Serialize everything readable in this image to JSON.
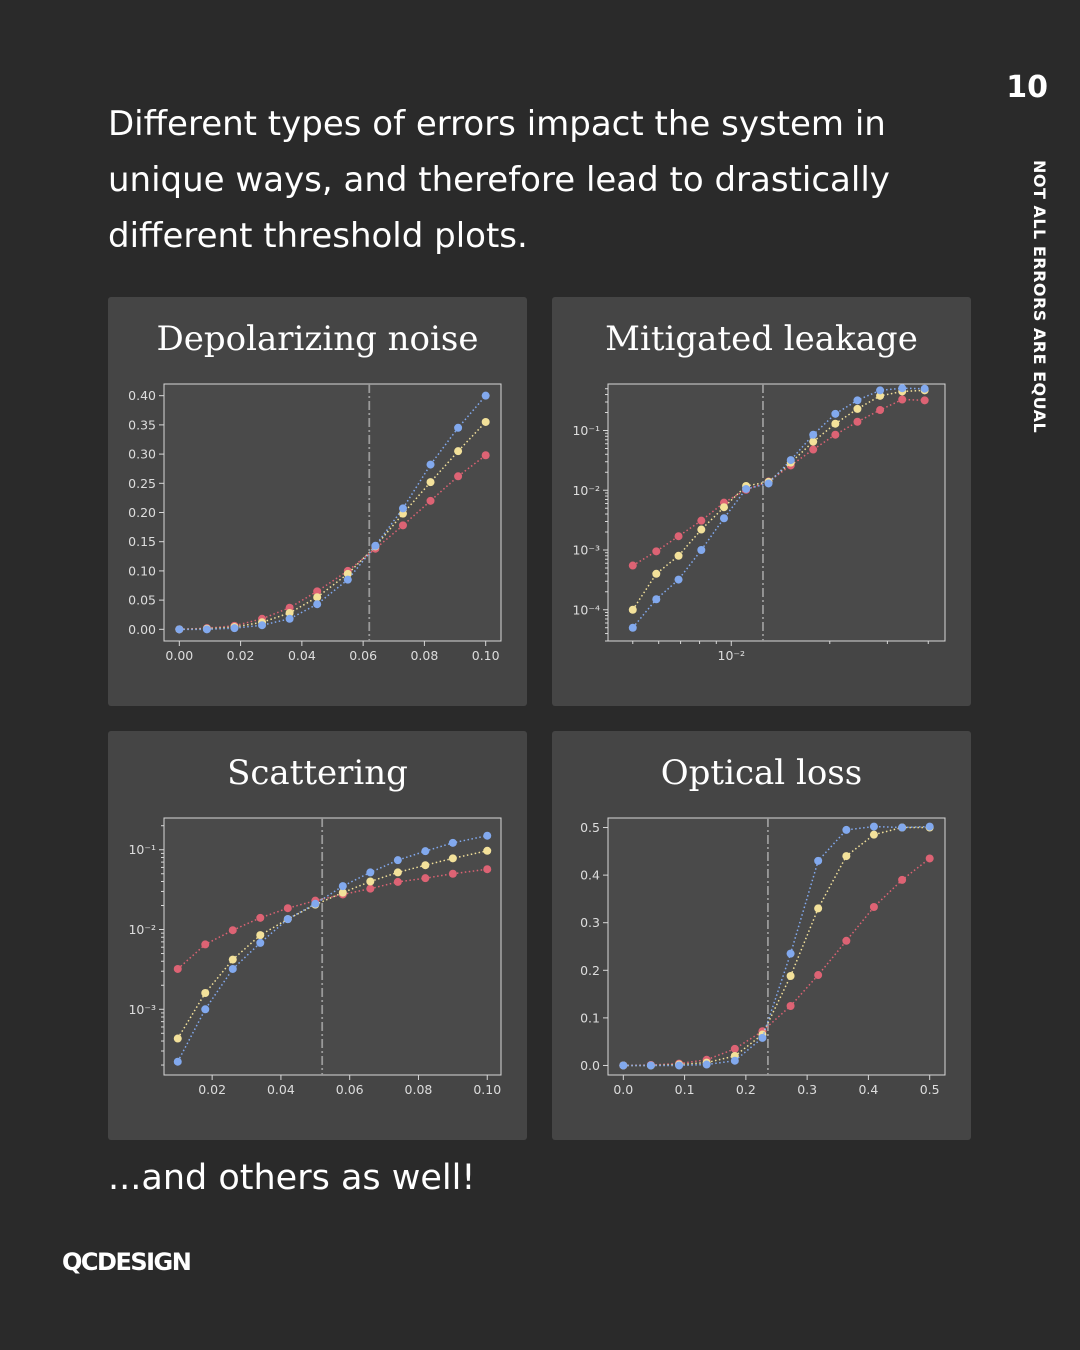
{
  "page_number": "10",
  "side_title": "NOT ALL ERRORS ARE EQUAL",
  "intro_text": "Different types of errors impact the system in unique ways, and therefore lead to drastically different threshold plots.",
  "outro_text": "...and others as well!",
  "brand": "QCDESIGN",
  "colors": {
    "background": "#2a2a2a",
    "panel": "#454545",
    "plot_bg": "#4a4a4a",
    "blue": "#82a9ee",
    "yellow": "#f3e19a",
    "red": "#dd6374",
    "threshold_line": "#9a9a9a"
  },
  "chart_data": [
    {
      "type": "line",
      "title": "Depolarizing noise",
      "xscale": "linear",
      "yscale": "linear",
      "xlim": [
        -0.005,
        0.105
      ],
      "ylim": [
        -0.02,
        0.42
      ],
      "xticks": [
        0.0,
        0.02,
        0.04,
        0.06,
        0.08,
        0.1
      ],
      "xtick_labels": [
        "0.00",
        "0.02",
        "0.04",
        "0.06",
        "0.08",
        "0.10"
      ],
      "yticks": [
        0.0,
        0.05,
        0.1,
        0.15,
        0.2,
        0.25,
        0.3,
        0.35,
        0.4
      ],
      "ytick_labels": [
        "0.00",
        "0.05",
        "0.10",
        "0.15",
        "0.20",
        "0.25",
        "0.30",
        "0.35",
        "0.40"
      ],
      "threshold": 0.062,
      "x": [
        0.0,
        0.009,
        0.018,
        0.027,
        0.036,
        0.045,
        0.055,
        0.064,
        0.073,
        0.082,
        0.091,
        0.1
      ],
      "series": [
        {
          "color": "#dd6374",
          "values": [
            0.0,
            0.002,
            0.006,
            0.018,
            0.037,
            0.065,
            0.1,
            0.138,
            0.178,
            0.22,
            0.262,
            0.298
          ]
        },
        {
          "color": "#f3e19a",
          "values": [
            0.0,
            0.001,
            0.004,
            0.012,
            0.028,
            0.055,
            0.095,
            0.142,
            0.198,
            0.252,
            0.305,
            0.355
          ]
        },
        {
          "color": "#82a9ee",
          "values": [
            0.0,
            0.0,
            0.002,
            0.007,
            0.018,
            0.043,
            0.085,
            0.143,
            0.207,
            0.282,
            0.345,
            0.4
          ]
        }
      ]
    },
    {
      "type": "line",
      "title": "Mitigated leakage",
      "xscale": "log",
      "yscale": "log",
      "xlim": [
        0.0042,
        0.045
      ],
      "ylim": [
        3e-05,
        0.6
      ],
      "xticks": [
        0.01
      ],
      "xtick_labels": [
        "10⁻²"
      ],
      "yticks": [
        0.0001,
        0.001,
        0.01,
        0.1
      ],
      "ytick_labels": [
        "10⁻⁴",
        "10⁻³",
        "10⁻²",
        "10⁻¹"
      ],
      "threshold": 0.0125,
      "x": [
        0.005,
        0.0059,
        0.0069,
        0.0081,
        0.0095,
        0.0111,
        0.013,
        0.0152,
        0.0178,
        0.0208,
        0.0243,
        0.0285,
        0.0333,
        0.039
      ],
      "series": [
        {
          "color": "#dd6374",
          "values": [
            0.00055,
            0.00095,
            0.0017,
            0.0031,
            0.0062,
            0.0102,
            0.014,
            0.026,
            0.048,
            0.085,
            0.14,
            0.22,
            0.33,
            0.32
          ]
        },
        {
          "color": "#f3e19a",
          "values": [
            0.0001,
            0.0004,
            0.0008,
            0.0022,
            0.0052,
            0.0118,
            0.0138,
            0.029,
            0.065,
            0.13,
            0.23,
            0.38,
            0.45,
            0.47
          ]
        },
        {
          "color": "#82a9ee",
          "values": [
            5e-05,
            0.00015,
            0.00032,
            0.001,
            0.0034,
            0.0105,
            0.013,
            0.032,
            0.085,
            0.19,
            0.32,
            0.47,
            0.51,
            0.5
          ]
        }
      ]
    },
    {
      "type": "line",
      "title": "Scattering",
      "xscale": "linear",
      "yscale": "log",
      "xlim": [
        0.006,
        0.104
      ],
      "ylim": [
        0.00015,
        0.25
      ],
      "xticks": [
        0.02,
        0.04,
        0.06,
        0.08,
        0.1
      ],
      "xtick_labels": [
        "0.02",
        "0.04",
        "0.06",
        "0.08",
        "0.10"
      ],
      "yticks": [
        0.001,
        0.01,
        0.1
      ],
      "ytick_labels": [
        "10⁻³",
        "10⁻²",
        "10⁻¹"
      ],
      "threshold": 0.052,
      "x": [
        0.01,
        0.018,
        0.026,
        0.034,
        0.042,
        0.05,
        0.058,
        0.066,
        0.074,
        0.082,
        0.09,
        0.1
      ],
      "series": [
        {
          "color": "#dd6374",
          "values": [
            0.0032,
            0.0065,
            0.0098,
            0.014,
            0.0185,
            0.023,
            0.0275,
            0.0325,
            0.0395,
            0.044,
            0.05,
            0.057
          ]
        },
        {
          "color": "#f3e19a",
          "values": [
            0.00043,
            0.0016,
            0.0042,
            0.0085,
            0.0135,
            0.0205,
            0.029,
            0.04,
            0.052,
            0.064,
            0.078,
            0.097
          ]
        },
        {
          "color": "#82a9ee",
          "values": [
            0.00022,
            0.001,
            0.0032,
            0.0068,
            0.0135,
            0.021,
            0.035,
            0.052,
            0.074,
            0.096,
            0.122,
            0.15
          ]
        }
      ]
    },
    {
      "type": "line",
      "title": "Optical loss",
      "xscale": "linear",
      "yscale": "linear",
      "xlim": [
        -0.025,
        0.525
      ],
      "ylim": [
        -0.02,
        0.52
      ],
      "xticks": [
        0.0,
        0.1,
        0.2,
        0.3,
        0.4,
        0.5
      ],
      "xtick_labels": [
        "0.0",
        "0.1",
        "0.2",
        "0.3",
        "0.4",
        "0.5"
      ],
      "yticks": [
        0.0,
        0.1,
        0.2,
        0.3,
        0.4,
        0.5
      ],
      "ytick_labels": [
        "0.0",
        "0.1",
        "0.2",
        "0.3",
        "0.4",
        "0.5"
      ],
      "threshold": 0.236,
      "x": [
        0.0,
        0.045,
        0.091,
        0.136,
        0.182,
        0.227,
        0.273,
        0.318,
        0.364,
        0.409,
        0.455,
        0.5
      ],
      "series": [
        {
          "color": "#dd6374",
          "values": [
            0.0,
            0.001,
            0.004,
            0.012,
            0.035,
            0.072,
            0.125,
            0.19,
            0.262,
            0.333,
            0.39,
            0.435
          ]
        },
        {
          "color": "#f3e19a",
          "values": [
            0.0,
            0.0,
            0.002,
            0.006,
            0.02,
            0.065,
            0.188,
            0.33,
            0.44,
            0.485,
            0.5,
            0.5
          ]
        },
        {
          "color": "#82a9ee",
          "values": [
            0.0,
            0.0,
            0.0,
            0.002,
            0.01,
            0.058,
            0.235,
            0.43,
            0.495,
            0.502,
            0.5,
            0.502
          ]
        }
      ]
    }
  ]
}
